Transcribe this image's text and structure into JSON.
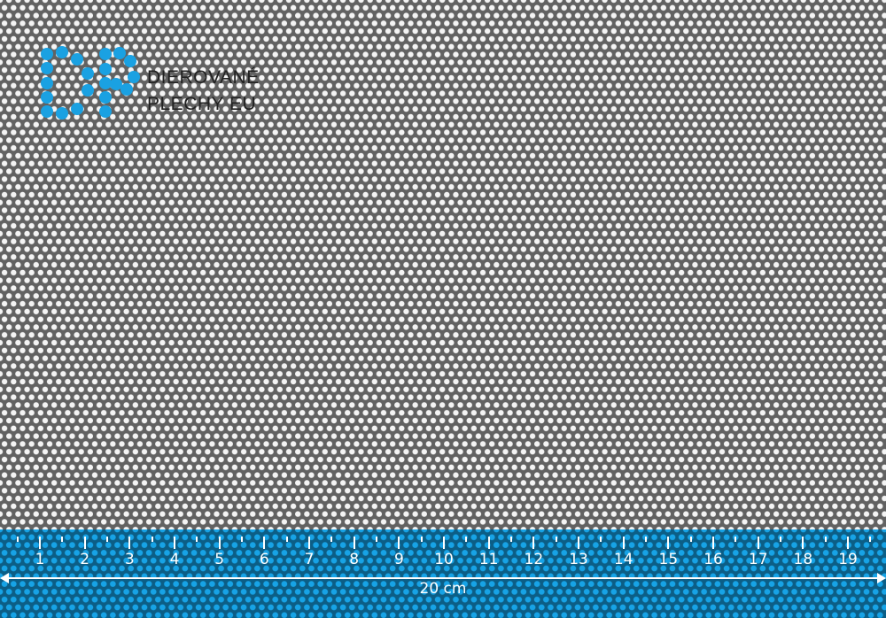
{
  "logo": {
    "line1": "DIEROVANÉ",
    "line2": "PLECHY EU",
    "monogram": "DP",
    "color": "#1aa1e2"
  },
  "ruler": {
    "labels": [
      "1",
      "2",
      "3",
      "4",
      "5",
      "6",
      "7",
      "8",
      "9",
      "10",
      "11",
      "12",
      "13",
      "14",
      "15",
      "16",
      "17",
      "18",
      "19"
    ],
    "total_label": "20 cm",
    "color": "#0c5e86"
  },
  "sheet": {
    "color": "#626262",
    "hole_color": "#f4f4f4"
  }
}
